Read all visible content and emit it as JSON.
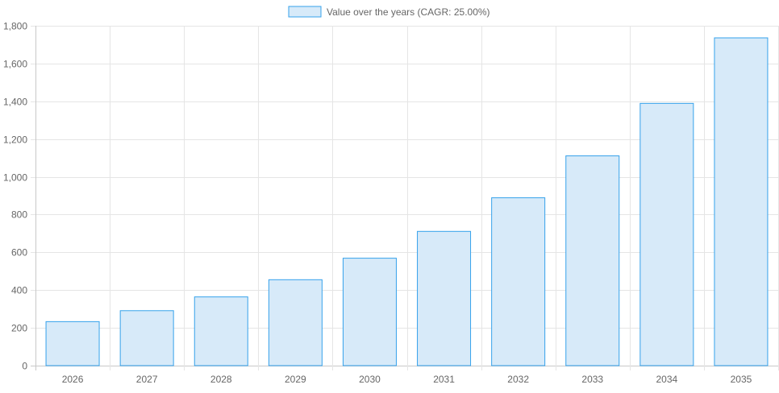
{
  "chart_data": {
    "type": "bar",
    "title": "",
    "xlabel": "",
    "ylabel": "",
    "legend": {
      "label": "Value over the years (CAGR: 25.00%)",
      "position": "top"
    },
    "categories": [
      "2026",
      "2027",
      "2028",
      "2029",
      "2030",
      "2031",
      "2032",
      "2033",
      "2034",
      "2035"
    ],
    "series": [
      {
        "name": "Value over the years (CAGR: 25.00%)",
        "values": [
          233,
          291,
          364,
          455,
          569,
          711,
          889,
          1111,
          1389,
          1736
        ]
      }
    ],
    "ylim": [
      0,
      1800
    ],
    "yticks": [
      0,
      200,
      400,
      600,
      800,
      1000,
      1200,
      1400,
      1600,
      1800
    ],
    "ytick_labels": [
      "0",
      "200",
      "400",
      "600",
      "800",
      "1,000",
      "1,200",
      "1,400",
      "1,600",
      "1,800"
    ],
    "grid": true,
    "colors": {
      "bar_fill": "#d7eaf9",
      "bar_stroke": "#36a2eb",
      "grid": "#e5e5e5"
    }
  }
}
